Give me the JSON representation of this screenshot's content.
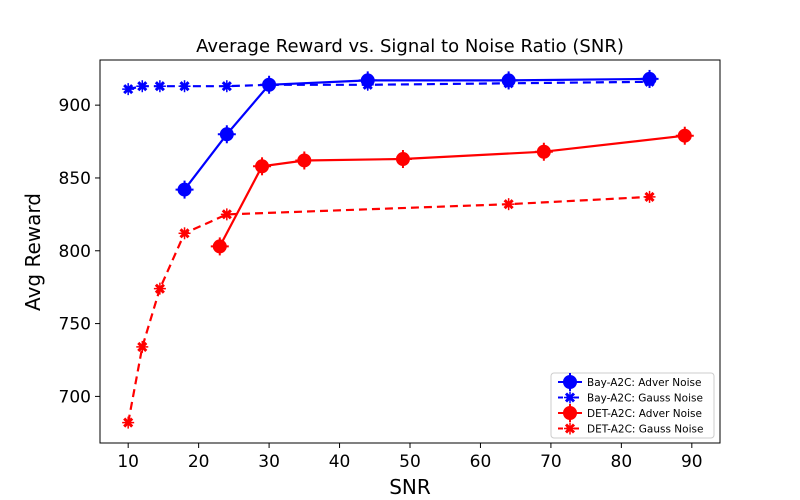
{
  "chart_data": {
    "type": "line",
    "title": "Average Reward vs. Signal to Noise Ratio (SNR)",
    "xlabel": "SNR",
    "ylabel": "Avg Reward",
    "xlim": [
      6,
      94
    ],
    "ylim": [
      668,
      931
    ],
    "xticks": [
      10,
      20,
      30,
      40,
      50,
      60,
      70,
      80,
      90
    ],
    "yticks": [
      700,
      750,
      800,
      850,
      900
    ],
    "grid": false,
    "legend_position": "lower-right",
    "series": [
      {
        "name": "Bay-A2C: Adver Noise",
        "color": "#0000ff",
        "linestyle": "solid",
        "x": [
          18,
          24,
          30,
          44,
          64,
          84
        ],
        "y": [
          842,
          880,
          914,
          917,
          917,
          918
        ]
      },
      {
        "name": "Bay-A2C: Gauss Noise",
        "color": "#0000ff",
        "linestyle": "dashed",
        "x": [
          10,
          12,
          14.5,
          18,
          24,
          30,
          44,
          64,
          84
        ],
        "y": [
          911,
          913,
          913,
          913,
          913,
          914,
          914,
          915,
          916
        ]
      },
      {
        "name": "DET-A2C: Adver Noise",
        "color": "#ff0000",
        "linestyle": "solid",
        "x": [
          23,
          29,
          35,
          49,
          69,
          89
        ],
        "y": [
          803,
          858,
          862,
          863,
          868,
          879
        ]
      },
      {
        "name": "DET-A2C: Gauss Noise",
        "color": "#ff0000",
        "linestyle": "dashed",
        "x": [
          10,
          12,
          14.5,
          18,
          24,
          64,
          84
        ],
        "y": [
          682,
          734,
          774,
          812,
          825,
          832,
          837
        ]
      }
    ]
  }
}
